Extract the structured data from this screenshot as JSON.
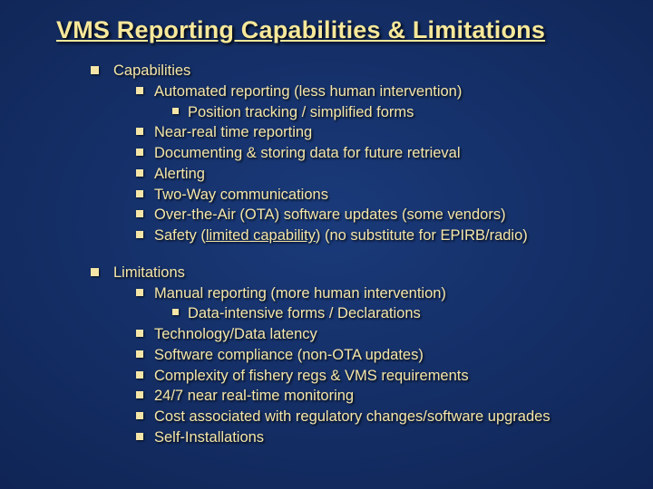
{
  "styling": {
    "title_color": "#f7e89a",
    "text_color": "#f5e6a8",
    "bullet_color": "#f5e6a8",
    "background_gradient": [
      "#1a3a7a",
      "#122a5e",
      "#0a1840"
    ],
    "title_fontsize": 27,
    "body_fontsize": 16.5,
    "font_family": "Arial",
    "shadow_color": "#000000"
  },
  "title": "VMS Reporting Capabilities & Limitations",
  "sections": [
    {
      "heading": "Capabilities",
      "items": [
        {
          "text": "Automated reporting (less human intervention)",
          "sub": [
            {
              "text": "Position tracking / simplified forms"
            }
          ]
        },
        {
          "text": "Near-real time reporting"
        },
        {
          "text": "Documenting & storing data for future retrieval"
        },
        {
          "text": "Alerting"
        },
        {
          "text": "Two-Way communications"
        },
        {
          "text": "Over-the-Air (OTA) software updates (some vendors)"
        },
        {
          "pre": "Safety (",
          "u": "limited capability",
          "post": ") (no substitute for EPIRB/radio)"
        }
      ]
    },
    {
      "heading": "Limitations",
      "items": [
        {
          "text": "Manual reporting (more human intervention)",
          "sub": [
            {
              "text": "Data-intensive forms / Declarations"
            }
          ]
        },
        {
          "text": "Technology/Data latency"
        },
        {
          "text": "Software compliance (non-OTA updates)"
        },
        {
          "text": "Complexity of fishery regs & VMS requirements"
        },
        {
          "text": "24/7 near real-time monitoring"
        },
        {
          "text": "Cost associated with regulatory changes/software upgrades"
        },
        {
          "text": "Self-Installations"
        }
      ]
    }
  ]
}
